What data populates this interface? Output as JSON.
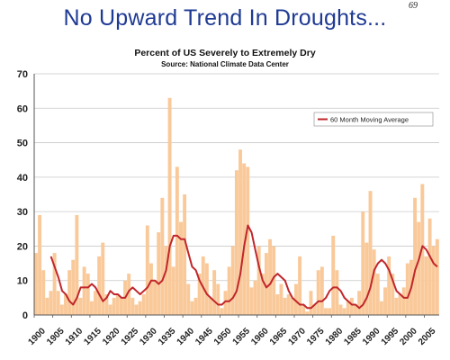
{
  "slide": {
    "title": "No Upward Trend In Droughts...",
    "page_number": "69"
  },
  "chart_data": {
    "type": "bar",
    "title": "Percent of US Severely to Extremely Dry",
    "subtitle": "Source:  National Climate Data Center",
    "xlabel": "",
    "ylabel": "",
    "ylim": [
      0,
      70
    ],
    "xlim": [
      1900,
      2009
    ],
    "yticks": [
      0,
      10,
      20,
      30,
      40,
      50,
      60,
      70
    ],
    "xticks": [
      "1900",
      "1905",
      "1910",
      "1915",
      "1920",
      "1925",
      "1930",
      "1935",
      "1940",
      "1945",
      "1950",
      "1955",
      "1960",
      "1965",
      "1970",
      "1975",
      "1980",
      "1985",
      "1990",
      "1995",
      "2000",
      "2005"
    ],
    "grid": true,
    "legend_position": "upper-right",
    "colors": {
      "bars": "#f9c99a",
      "line": "#c0262b",
      "grid": "#c8c8c8"
    },
    "series": [
      {
        "type": "bar",
        "x": [
          1900,
          1901,
          1902,
          1903,
          1904,
          1905,
          1906,
          1907,
          1908,
          1909,
          1910,
          1911,
          1912,
          1913,
          1914,
          1915,
          1916,
          1917,
          1918,
          1919,
          1920,
          1921,
          1922,
          1923,
          1924,
          1925,
          1926,
          1927,
          1928,
          1929,
          1930,
          1931,
          1932,
          1933,
          1934,
          1935,
          1936,
          1937,
          1938,
          1939,
          1940,
          1941,
          1942,
          1943,
          1944,
          1945,
          1946,
          1947,
          1948,
          1949,
          1950,
          1951,
          1952,
          1953,
          1954,
          1955,
          1956,
          1957,
          1958,
          1959,
          1960,
          1961,
          1962,
          1963,
          1964,
          1965,
          1966,
          1967,
          1968,
          1969,
          1970,
          1971,
          1972,
          1973,
          1974,
          1975,
          1976,
          1977,
          1978,
          1979,
          1980,
          1981,
          1982,
          1983,
          1984,
          1985,
          1986,
          1987,
          1988,
          1989,
          1990,
          1991,
          1992,
          1993,
          1994,
          1995,
          1996,
          1997,
          1998,
          1999,
          2000,
          2001,
          2002,
          2003,
          2004,
          2005,
          2006,
          2007,
          2008
        ],
        "values": [
          18,
          29,
          13,
          5,
          7,
          18,
          7,
          3,
          6,
          13,
          16,
          29,
          5,
          14,
          12,
          4,
          7,
          17,
          21,
          6,
          3,
          5,
          6,
          5,
          10,
          12,
          5,
          3,
          4,
          6,
          26,
          15,
          10,
          24,
          34,
          20,
          63,
          14,
          43,
          27,
          35,
          9,
          4,
          5,
          12,
          17,
          15,
          5,
          13,
          9,
          2,
          7,
          14,
          20,
          42,
          48,
          44,
          43,
          8,
          10,
          20,
          12,
          18,
          22,
          20,
          6,
          9,
          5,
          6,
          5,
          9,
          17,
          3,
          1,
          7,
          3,
          13,
          14,
          2,
          2,
          23,
          13,
          3,
          2,
          4,
          5,
          3,
          7,
          30,
          21,
          36,
          19,
          12,
          4,
          8,
          17,
          12,
          5,
          6,
          8,
          15,
          16,
          34,
          27,
          38,
          17,
          28,
          20,
          22
        ]
      },
      {
        "type": "line",
        "name": "60 Month Moving Average",
        "x": [
          1904,
          1905,
          1906,
          1907,
          1908,
          1909,
          1910,
          1911,
          1912,
          1913,
          1914,
          1915,
          1916,
          1917,
          1918,
          1919,
          1920,
          1921,
          1922,
          1923,
          1924,
          1925,
          1926,
          1927,
          1928,
          1929,
          1930,
          1931,
          1932,
          1933,
          1934,
          1935,
          1936,
          1937,
          1938,
          1939,
          1940,
          1941,
          1942,
          1943,
          1944,
          1945,
          1946,
          1947,
          1948,
          1949,
          1950,
          1951,
          1952,
          1953,
          1954,
          1955,
          1956,
          1957,
          1958,
          1959,
          1960,
          1961,
          1962,
          1963,
          1964,
          1965,
          1966,
          1967,
          1968,
          1969,
          1970,
          1971,
          1972,
          1973,
          1974,
          1975,
          1976,
          1977,
          1978,
          1979,
          1980,
          1981,
          1982,
          1983,
          1984,
          1985,
          1986,
          1987,
          1988,
          1989,
          1990,
          1991,
          1992,
          1993,
          1994,
          1995,
          1996,
          1997,
          1998,
          1999,
          2000,
          2001,
          2002,
          2003,
          2004,
          2005,
          2006,
          2007,
          2008
        ],
        "values": [
          17,
          14,
          11,
          7,
          6,
          4,
          3,
          5,
          8,
          8,
          8,
          9,
          8,
          6,
          4,
          5,
          7,
          6,
          6,
          5,
          5,
          7,
          8,
          7,
          6,
          7,
          8,
          10,
          10,
          9,
          10,
          13,
          20,
          23,
          23,
          22,
          22,
          18,
          14,
          13,
          10,
          8,
          6,
          5,
          4,
          3,
          3,
          4,
          4,
          5,
          7,
          12,
          20,
          26,
          24,
          19,
          14,
          10,
          8,
          9,
          11,
          12,
          11,
          10,
          7,
          5,
          4,
          3,
          3,
          2,
          2,
          3,
          4,
          4,
          5,
          7,
          8,
          8,
          7,
          5,
          4,
          3,
          3,
          2,
          3,
          5,
          8,
          13,
          15,
          16,
          15,
          13,
          10,
          7,
          6,
          5,
          5,
          8,
          13,
          16,
          20,
          19,
          17,
          15,
          14
        ]
      }
    ]
  }
}
